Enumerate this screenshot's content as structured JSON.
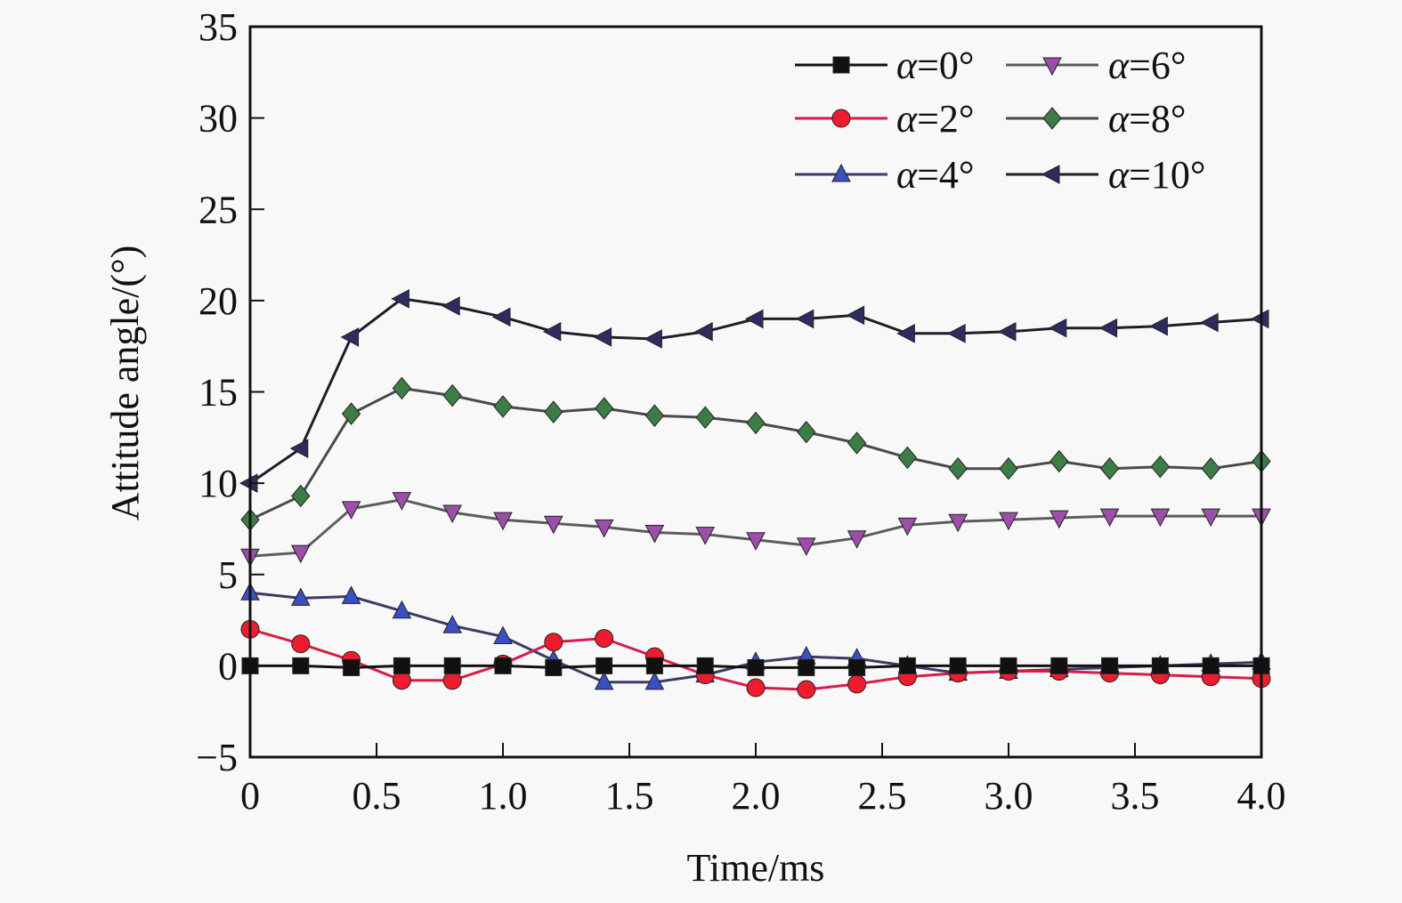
{
  "chart_data": {
    "type": "line",
    "title": "",
    "xlabel": "Time/ms",
    "ylabel": "Attitude angle/(°)",
    "xlim": [
      0,
      4.0
    ],
    "ylim": [
      -5,
      35
    ],
    "xticks": [
      "0",
      "0.5",
      "1.0",
      "1.5",
      "2.0",
      "2.5",
      "3.0",
      "3.5",
      "4.0"
    ],
    "xtick_values": [
      0,
      0.5,
      1.0,
      1.5,
      2.0,
      2.5,
      3.0,
      3.5,
      4.0
    ],
    "yticks": [
      "−5",
      "0",
      "5",
      "10",
      "15",
      "20",
      "25",
      "30",
      "35"
    ],
    "ytick_values": [
      -5,
      0,
      5,
      10,
      15,
      20,
      25,
      30,
      35
    ],
    "grid": false,
    "legend_position": "top-right",
    "x": [
      0,
      0.2,
      0.4,
      0.6,
      0.8,
      1.0,
      1.2,
      1.4,
      1.6,
      1.8,
      2.0,
      2.2,
      2.4,
      2.6,
      2.8,
      3.0,
      3.2,
      3.4,
      3.6,
      3.8,
      4.0
    ],
    "series": [
      {
        "name": "α=0°",
        "greek": "α",
        "rest": "=0°",
        "color": "#111111",
        "line_color": "#111111",
        "marker": "square",
        "values": [
          0,
          0,
          -0.1,
          0,
          0,
          0,
          -0.1,
          0,
          0,
          0,
          -0.1,
          -0.1,
          -0.1,
          0,
          0,
          0,
          0,
          0,
          0,
          0,
          0
        ]
      },
      {
        "name": "α=2°",
        "greek": "α",
        "rest": "=2°",
        "color": "#ee1c2e",
        "line_color": "#d81b4a",
        "marker": "circle",
        "values": [
          2.0,
          1.2,
          0.3,
          -0.8,
          -0.8,
          0.1,
          1.3,
          1.5,
          0.5,
          -0.5,
          -1.2,
          -1.3,
          -1.0,
          -0.6,
          -0.4,
          -0.3,
          -0.3,
          -0.4,
          -0.5,
          -0.6,
          -0.7
        ]
      },
      {
        "name": "α=4°",
        "greek": "α",
        "rest": "=4°",
        "color": "#3a4fc2",
        "line_color": "#3b3b66",
        "marker": "triangle-up",
        "values": [
          4.0,
          3.7,
          3.8,
          3.0,
          2.2,
          1.6,
          0.3,
          -0.9,
          -0.9,
          -0.5,
          0.2,
          0.5,
          0.4,
          0.0,
          -0.4,
          -0.3,
          -0.2,
          -0.1,
          0.0,
          0.1,
          0.2
        ]
      },
      {
        "name": "α=6°",
        "greek": "α",
        "rest": "=6°",
        "color": "#9b4fa8",
        "line_color": "#5c5c5c",
        "marker": "triangle-down",
        "values": [
          6.0,
          6.2,
          8.6,
          9.1,
          8.4,
          8.0,
          7.8,
          7.6,
          7.3,
          7.2,
          6.9,
          6.6,
          7.0,
          7.7,
          7.9,
          8.0,
          8.1,
          8.2,
          8.2,
          8.2,
          8.2
        ]
      },
      {
        "name": "α=8°",
        "greek": "α",
        "rest": "=8°",
        "color": "#3d7d45",
        "line_color": "#4a4a4a",
        "marker": "diamond",
        "values": [
          8.0,
          9.3,
          13.8,
          15.2,
          14.8,
          14.2,
          13.9,
          14.1,
          13.7,
          13.6,
          13.3,
          12.8,
          12.2,
          11.4,
          10.8,
          10.8,
          11.2,
          10.8,
          10.9,
          10.8,
          11.2
        ]
      },
      {
        "name": "α=10°",
        "greek": "α",
        "rest": "=10°",
        "color": "#2e2c5e",
        "line_color": "#1e1e2a",
        "marker": "triangle-left",
        "values": [
          10.0,
          11.9,
          18.0,
          20.1,
          19.7,
          19.1,
          18.3,
          18.0,
          17.9,
          18.3,
          19.0,
          19.0,
          19.2,
          18.2,
          18.2,
          18.3,
          18.5,
          18.5,
          18.6,
          18.8,
          19.0
        ]
      }
    ]
  }
}
